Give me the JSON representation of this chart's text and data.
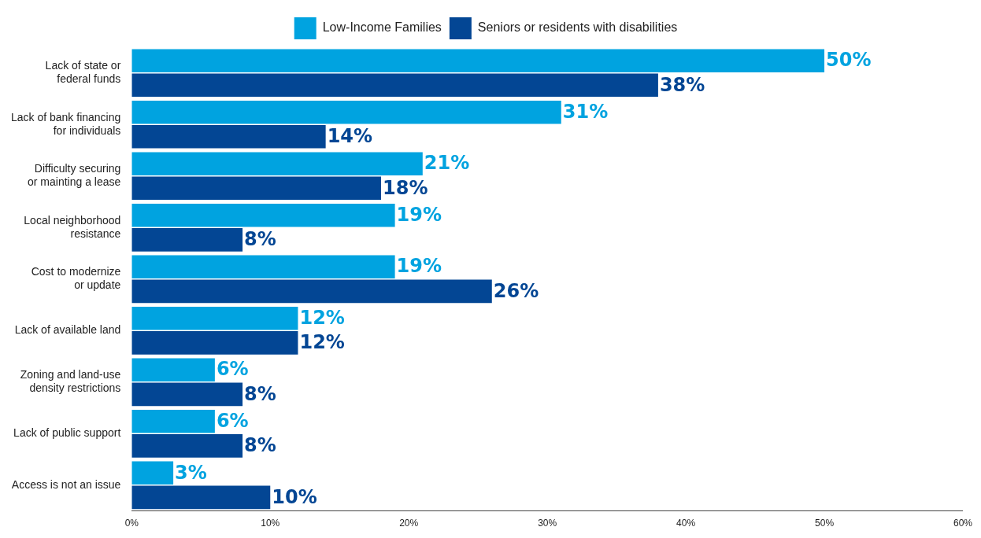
{
  "chart_data": {
    "type": "bar",
    "orientation": "horizontal",
    "categories": [
      "Lack of state or\nfederal funds",
      "Lack of bank financing\nfor individuals",
      "Difficulty securing\nor mainting a lease",
      "Local neighborhood\nresistance",
      "Cost to modernize\nor update",
      "Lack of available land",
      "Zoning and land-use\ndensity restrictions",
      "Lack of public support",
      "Access is not an issue"
    ],
    "series": [
      {
        "name": "Low-Income Families",
        "color": "#00a3e0",
        "values": [
          50,
          31,
          21,
          19,
          19,
          12,
          6,
          6,
          3
        ],
        "value_labels": [
          "50%",
          "31%",
          "21%",
          "19%",
          "19%",
          "12%",
          "6%",
          "6%",
          "3%"
        ]
      },
      {
        "name": "Seniors or residents with disabilities",
        "color": "#034694",
        "values": [
          38,
          14,
          18,
          8,
          26,
          12,
          8,
          8,
          10
        ],
        "value_labels": [
          "38%",
          "14%",
          "18%",
          "8%",
          "26%",
          "12%",
          "8%",
          "8%",
          "10%"
        ]
      }
    ],
    "xlim": [
      0,
      60
    ],
    "xticks": [
      {
        "value": 0,
        "label": "0%"
      },
      {
        "value": 10,
        "label": "10%"
      },
      {
        "value": 20,
        "label": "20%"
      },
      {
        "value": 30,
        "label": "30%"
      },
      {
        "value": 40,
        "label": "40%"
      },
      {
        "value": 50,
        "label": "50%"
      },
      {
        "value": 60,
        "label": "60%"
      }
    ],
    "grid": false,
    "legend": "top"
  }
}
